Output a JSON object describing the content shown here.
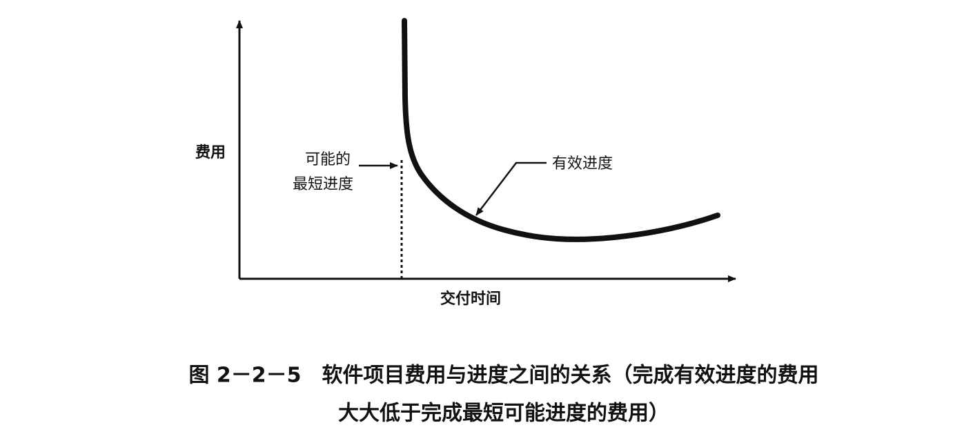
{
  "axes": {
    "y_label": "费用",
    "x_label": "交付时间"
  },
  "annotations": [
    {
      "lines": [
        "可能的",
        "最短进度"
      ]
    },
    {
      "label": "有效进度"
    }
  ],
  "caption": {
    "lines": [
      "图 2－2－5　软件项目费用与进度之间的关系（完成有效进度的费用",
      "大大低于完成最短可能进度的费用）"
    ]
  }
}
